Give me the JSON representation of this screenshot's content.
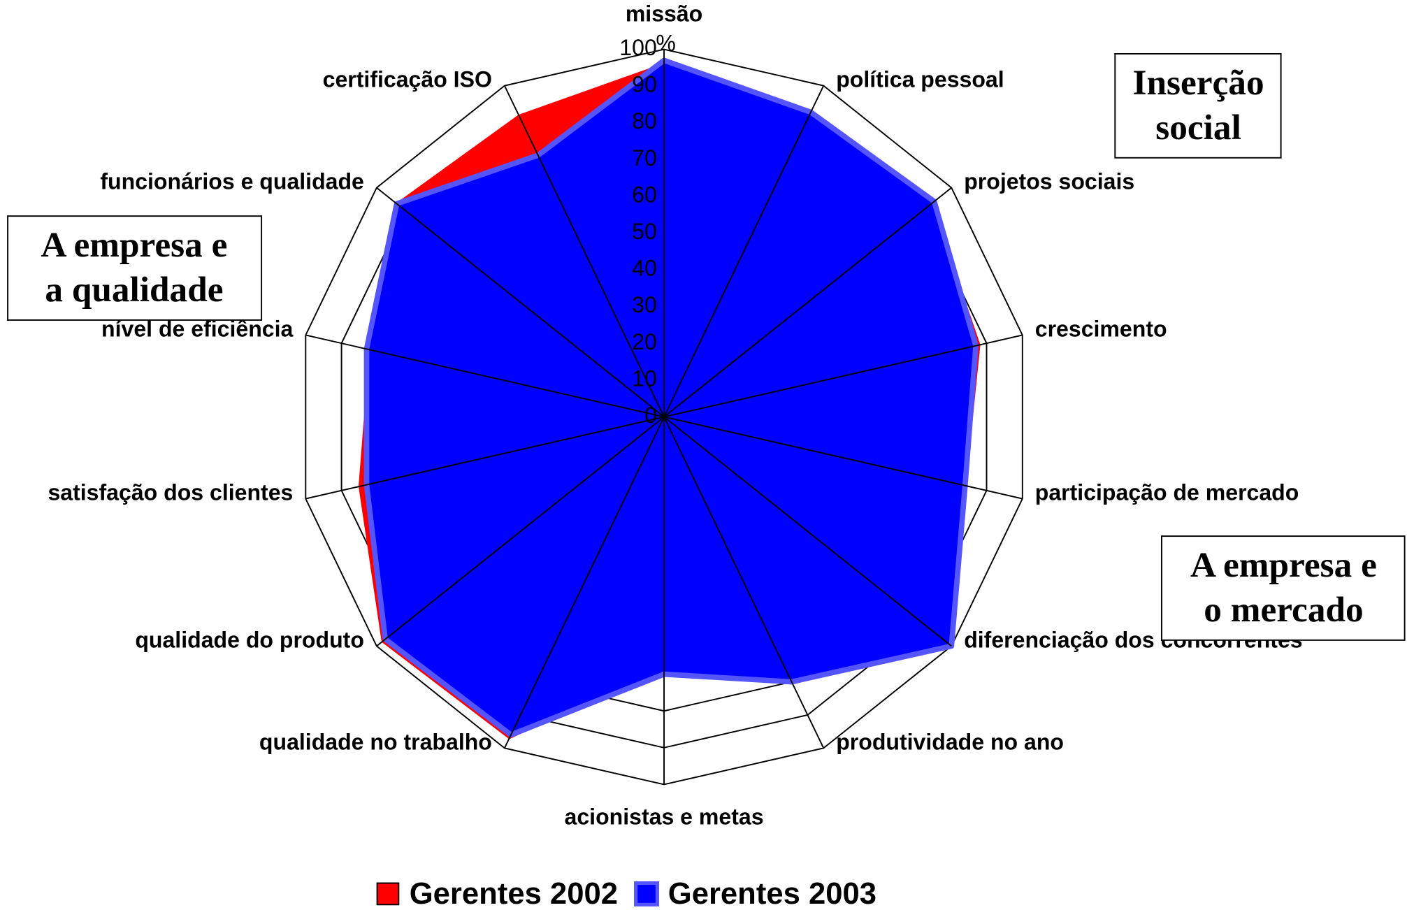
{
  "chart_data": {
    "type": "radar",
    "categories": [
      "missão",
      "política pessoal",
      "projetos sociais",
      "crescimento",
      "participação de mercado",
      "diferenciação dos concorrentes",
      "produtividade no ano",
      "acionistas e metas",
      "qualidade no trabalho",
      "qualidade do produto",
      "satisfação dos clientes",
      "nível de eficiência",
      "funcionários e qualidade",
      "certificação ISO"
    ],
    "series": [
      {
        "name": "Gerentes 2002",
        "color": "#ff0000",
        "values": [
          96,
          91,
          93,
          88,
          84,
          99,
          79,
          68,
          97,
          98,
          85,
          82,
          93,
          91
        ]
      },
      {
        "name": "Gerentes 2003",
        "color": "#0000ff",
        "values": [
          97,
          92,
          94,
          87,
          84,
          100,
          80,
          70,
          96,
          97,
          83,
          83,
          93,
          79
        ]
      }
    ],
    "ylim": [
      0,
      100
    ],
    "yticks": [
      0,
      10,
      20,
      30,
      40,
      50,
      60,
      70,
      80,
      90,
      100
    ],
    "y_unit": "%",
    "annotations": [
      [
        "Inserção",
        "social"
      ],
      [
        "A empresa e",
        "a qualidade"
      ],
      [
        "A empresa e",
        "o mercado"
      ]
    ],
    "legend": "bottom"
  }
}
